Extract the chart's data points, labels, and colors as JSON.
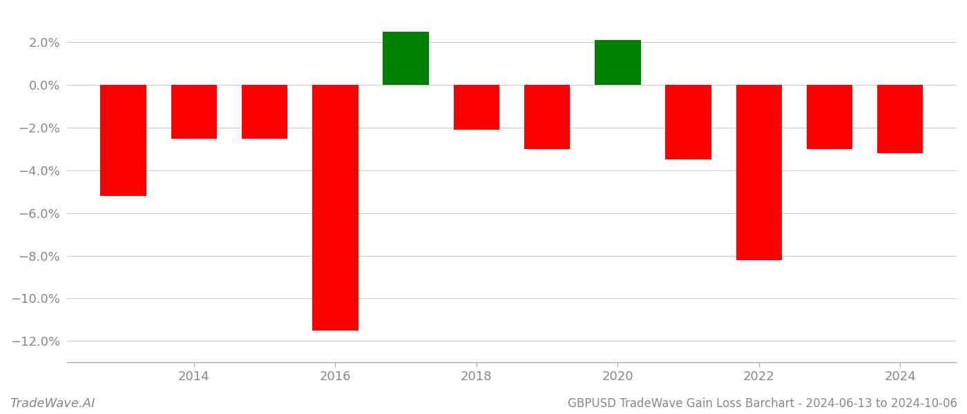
{
  "years": [
    2013,
    2014,
    2015,
    2016,
    2017,
    2018,
    2019,
    2020,
    2021,
    2022,
    2023,
    2024
  ],
  "values": [
    -0.052,
    -0.025,
    -0.025,
    -0.115,
    0.025,
    -0.021,
    -0.03,
    0.021,
    -0.035,
    -0.082,
    -0.03,
    -0.032
  ],
  "bar_colors": [
    "#ff0000",
    "#ff0000",
    "#ff0000",
    "#ff0000",
    "#008000",
    "#ff0000",
    "#ff0000",
    "#008000",
    "#ff0000",
    "#ff0000",
    "#ff0000",
    "#ff0000"
  ],
  "title": "GBPUSD TradeWave Gain Loss Barchart - 2024-06-13 to 2024-10-06",
  "watermark": "TradeWave.AI",
  "ylim": [
    -0.13,
    0.035
  ],
  "yticks": [
    -0.12,
    -0.1,
    -0.08,
    -0.06,
    -0.04,
    -0.02,
    0.0,
    0.02
  ],
  "background_color": "#ffffff",
  "grid_color": "#cccccc",
  "bar_width": 0.65
}
